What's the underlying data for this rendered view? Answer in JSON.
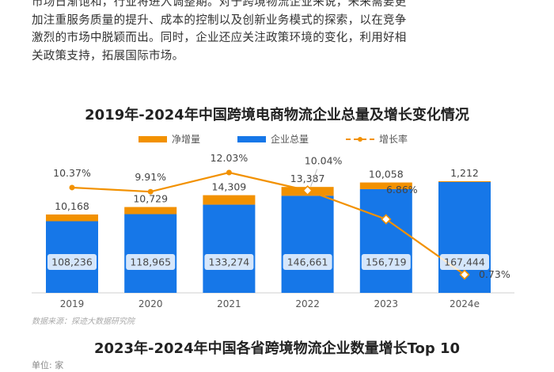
{
  "intro": {
    "lines": [
      "市场日渐饱和，行业将进入调整期。对于跨境物流企业来说，未来需要更",
      "加注重服务质量的提升、成本的控制以及创新业务模式的探索，以在竞争",
      "激烈的市场中脱颖而出。同时，企业还应关注政策环境的变化，利用好相",
      "关政策支持，拓展国际市场。"
    ]
  },
  "chart_title": "2019年-2024年中国跨境电商物流企业总量及增长变化情况",
  "source": "数据来源：探迹大数据研究院",
  "chart2_title": "2023年-2024年中国各省跨境物流企业数量增长Top 10",
  "chart2_unit": "单位: 家",
  "colors": {
    "total": "#1677e8",
    "increase": "#f29100",
    "rate": "#f29100"
  },
  "chart_data": {
    "type": "bar",
    "categories": [
      "2019",
      "2020",
      "2021",
      "2022",
      "2023",
      "2024e"
    ],
    "series": [
      {
        "name": "企业总量",
        "values": [
          108236,
          118965,
          133274,
          146661,
          156719,
          167444
        ],
        "labels": [
          "108,236",
          "118,965",
          "133,274",
          "146,661",
          "156,719",
          "167,444"
        ]
      },
      {
        "name": "净增量",
        "values": [
          10168,
          10729,
          14309,
          13387,
          10058,
          1212
        ],
        "labels": [
          "10,168",
          "10,729",
          "14,309",
          "13,387",
          "10,058",
          "1,212"
        ]
      },
      {
        "name": "增长率",
        "type": "line",
        "values": [
          10.37,
          9.91,
          12.03,
          10.04,
          6.86,
          0.73
        ],
        "labels": [
          "10.37%",
          "9.91%",
          "12.03%",
          "10.04%",
          "6.86%",
          "0.73%"
        ]
      }
    ],
    "legend_position": "top",
    "grid": false
  }
}
